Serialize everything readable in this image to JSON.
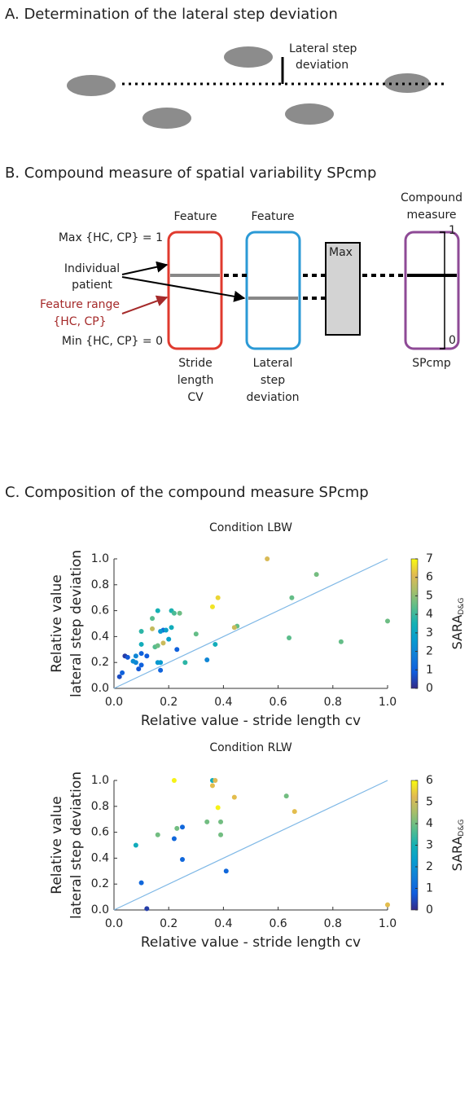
{
  "panel_a": {
    "title": "A. Determination of the lateral step deviation",
    "label": [
      "Lateral step",
      "deviation"
    ]
  },
  "panel_b": {
    "title": "B. Compound measure of spatial variability SPcmp",
    "feature_1": "Feature",
    "feature_2": "Feature",
    "compound": [
      "Compound",
      "measure"
    ],
    "max": "Max {HC, CP} = 1",
    "patient": [
      "Individual",
      "patient"
    ],
    "range": [
      "Feature range",
      "{HC, CP}"
    ],
    "min": "Min {HC, CP} = 0",
    "box_1": [
      "Stride",
      "length",
      "CV"
    ],
    "box_2": [
      "Lateral",
      "step",
      "deviation"
    ],
    "max_box": "Max",
    "box_3": "SPcmp",
    "scale_top": "1",
    "scale_bottom": "0"
  },
  "panel_c": {
    "title": "C. Composition of the compound measure SPcmp"
  },
  "chart_data": [
    {
      "type": "scatter",
      "title": "Condition LBW",
      "xlabel": "Relative value - stride length cv",
      "ylabel": [
        "Relative value",
        "lateral step deviation"
      ],
      "xlim": [
        0,
        1
      ],
      "ylim": [
        0,
        1
      ],
      "xticks": [
        {
          "value": 0,
          "label": "0.0"
        },
        0.2,
        0.4,
        0.6,
        0.8,
        {
          "value": 1,
          "label": "1.0"
        }
      ],
      "yticks": [
        {
          "value": 0,
          "label": "0.0"
        },
        0.2,
        0.4,
        0.6,
        0.8,
        {
          "value": 1,
          "label": "1.0"
        }
      ],
      "colormap": "parula",
      "clim": [
        0,
        7
      ],
      "cticks": [
        0,
        1,
        2,
        3,
        4,
        5,
        6,
        7
      ],
      "colorbar_label": "SARA",
      "colorbar_label_sub": "D&G",
      "diagonal_color": "#7fb8e6",
      "series": [
        {
          "x": [
            0.56,
            0.74,
            0.38,
            0.65,
            0.36,
            0.16,
            0.21,
            0.22,
            0.24,
            0.14,
            1.0,
            0.45,
            0.44,
            0.21,
            0.14,
            0.1,
            0.18,
            0.19,
            0.17,
            0.3,
            0.64,
            0.2,
            0.83,
            0.18,
            0.37,
            0.1,
            0.15,
            0.16,
            0.23,
            0.04,
            0.05,
            0.08,
            0.1,
            0.12,
            0.08,
            0.07,
            0.16,
            0.17,
            0.26,
            0.34,
            0.1,
            0.09,
            0.03,
            0.02,
            0.17
          ],
          "y": [
            1.0,
            0.88,
            0.7,
            0.7,
            0.63,
            0.6,
            0.6,
            0.58,
            0.58,
            0.54,
            0.52,
            0.48,
            0.47,
            0.47,
            0.46,
            0.44,
            0.45,
            0.45,
            0.44,
            0.42,
            0.39,
            0.38,
            0.36,
            0.35,
            0.34,
            0.34,
            0.32,
            0.33,
            0.3,
            0.25,
            0.24,
            0.25,
            0.27,
            0.25,
            0.2,
            0.21,
            0.2,
            0.2,
            0.2,
            0.22,
            0.18,
            0.15,
            0.12,
            0.09,
            0.14
          ],
          "c": [
            6,
            4.7,
            6.5,
            4.5,
            6.7,
            3.5,
            3.6,
            4.2,
            4.6,
            4.3,
            4.6,
            4.5,
            5.8,
            3.3,
            5.7,
            3.8,
            1.2,
            2.8,
            2.5,
            4.5,
            4.4,
            2.8,
            4.5,
            5.8,
            3.3,
            3.3,
            4.3,
            4.6,
            1.0,
            0.3,
            0.8,
            2.0,
            1.0,
            0.9,
            2.0,
            2.2,
            2.5,
            2.6,
            3.8,
            2.0,
            1.0,
            0.8,
            1.0,
            0.6,
            1.1
          ]
        }
      ]
    },
    {
      "type": "scatter",
      "title": "Condition RLW",
      "xlabel": "Relative value - stride length cv",
      "ylabel": [
        "Relative value",
        "lateral step deviation"
      ],
      "xlim": [
        0,
        1
      ],
      "ylim": [
        0,
        1
      ],
      "xticks": [
        {
          "value": 0,
          "label": "0.0"
        },
        0.2,
        0.4,
        0.6,
        0.8,
        {
          "value": 1,
          "label": "1.0"
        }
      ],
      "yticks": [
        {
          "value": 0,
          "label": "0.0"
        },
        0.2,
        0.4,
        0.6,
        0.8,
        {
          "value": 1,
          "label": "1.0"
        }
      ],
      "colormap": "parula",
      "clim": [
        0,
        6
      ],
      "cticks": [
        0,
        1,
        2,
        3,
        4,
        5,
        6
      ],
      "colorbar_label": "SARA",
      "colorbar_label_sub": "D&G",
      "diagonal_color": "#7fb8e6",
      "series": [
        {
          "x": [
            0.36,
            0.37,
            0.22,
            0.36,
            0.44,
            0.63,
            0.38,
            0.66,
            0.34,
            0.39,
            0.25,
            0.23,
            0.16,
            0.39,
            0.22,
            0.08,
            0.25,
            0.41,
            0.1,
            0.12,
            1.0
          ],
          "y": [
            1.0,
            1.0,
            1.0,
            0.96,
            0.87,
            0.88,
            0.79,
            0.76,
            0.68,
            0.68,
            0.64,
            0.63,
            0.58,
            0.58,
            0.55,
            0.5,
            0.39,
            0.3,
            0.21,
            0.01,
            0.04
          ],
          "c": [
            2.8,
            5.2,
            5.9,
            5.3,
            5.3,
            4.0,
            5.9,
            5.3,
            4.0,
            4.0,
            1.0,
            4.0,
            4.0,
            4.0,
            1.0,
            2.8,
            1.0,
            1.0,
            1.0,
            0.3,
            5.3
          ]
        }
      ]
    }
  ]
}
